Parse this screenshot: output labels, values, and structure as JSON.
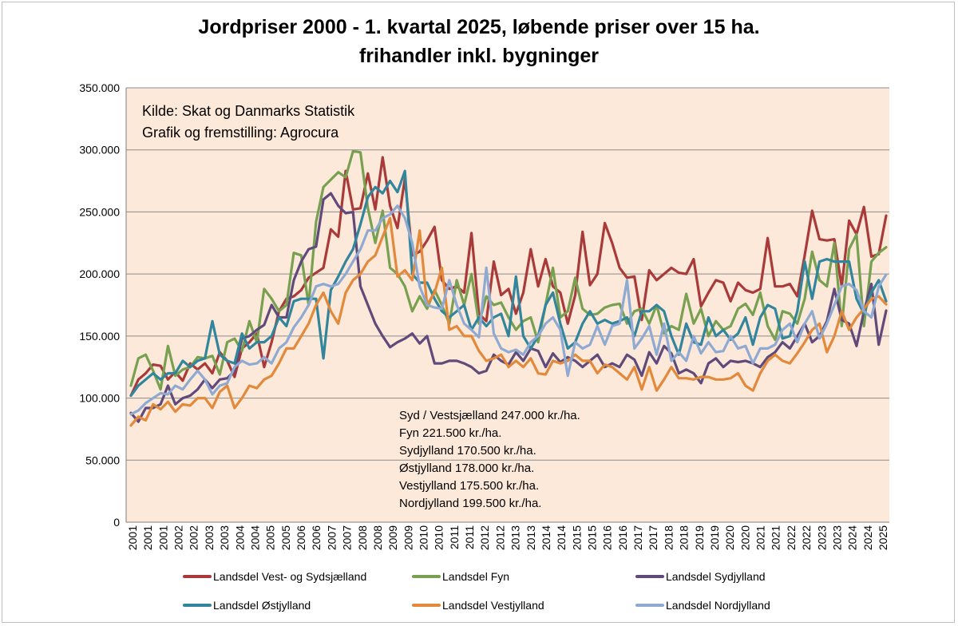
{
  "chart_data": {
    "type": "line",
    "title_lines": [
      "Jordpriser 2000 - 1. kvartal 2025, løbende priser over 15 ha.",
      "frihandler inkl. bygninger"
    ],
    "ylim": [
      0,
      350000
    ],
    "ytick_values": [
      0,
      50000,
      100000,
      150000,
      200000,
      250000,
      300000,
      350000
    ],
    "ytick_labels": [
      "0",
      "50.000",
      "100.000",
      "150.000",
      "200.000",
      "250.000",
      "300.000",
      "350.000"
    ],
    "xtick_labels": [
      "2001",
      "2001",
      "2001",
      "2002",
      "2002",
      "2003",
      "2003",
      "2004",
      "2004",
      "2005",
      "2005",
      "2006",
      "2006",
      "2007",
      "2007",
      "2008",
      "2008",
      "2009",
      "2009",
      "2010",
      "2010",
      "2011",
      "2011",
      "2012",
      "2012",
      "2013",
      "2013",
      "2014",
      "2014",
      "2015",
      "2015",
      "2016",
      "2016",
      "2017",
      "2017",
      "2018",
      "2018",
      "2019",
      "2019",
      "2020",
      "2020",
      "2021",
      "2021",
      "2022",
      "2022",
      "2023",
      "2023",
      "2024",
      "2024",
      "2025"
    ],
    "grid": "horizontal",
    "legend_placement": "bottom",
    "annotation": {
      "line1": "Kilde: Skat og Danmarks Statistik",
      "line2": "Grafik og fremstilling: Agrocura"
    },
    "summary": [
      "Syd / Vestsjælland 247.000 kr./ha.",
      "Fyn 221.500 kr./ha.",
      "Sydjylland 170.500 kr./ha.",
      "Østjylland 178.000 kr./ha.",
      "Vestjylland 175.500 kr./ha.",
      "Nordjylland 199.500 kr./ha."
    ],
    "series": [
      {
        "name": "Landsdel Vest- og Sydsjælland",
        "color": "#a93a3a",
        "values": [
          102000,
          115000,
          120000,
          127000,
          126000,
          115000,
          121000,
          114000,
          128000,
          123000,
          128000,
          120000,
          137000,
          130000,
          117000,
          140000,
          145000,
          152000,
          125000,
          145000,
          170000,
          180000,
          182000,
          187000,
          197000,
          201000,
          205000,
          236000,
          230000,
          283000,
          252000,
          253000,
          281000,
          252000,
          294000,
          255000,
          237000,
          277000,
          215000,
          218000,
          227000,
          238000,
          195000,
          188000,
          190000,
          185000,
          233000,
          168000,
          162000,
          210000,
          183000,
          188000,
          168000,
          185000,
          220000,
          190000,
          212000,
          190000,
          185000,
          160000,
          183000,
          234000,
          191000,
          200000,
          241000,
          225000,
          205000,
          197000,
          198000,
          163000,
          203000,
          195000,
          200000,
          205000,
          201000,
          200000,
          212000,
          174000,
          185000,
          195000,
          193000,
          178000,
          193000,
          187000,
          185000,
          188000,
          229000,
          190000,
          190000,
          192000,
          182000,
          215000,
          251000,
          228000,
          227000,
          228000,
          190000,
          243000,
          232000,
          254000,
          214000,
          216000,
          247000
        ]
      },
      {
        "name": "Landsdel Fyn",
        "color": "#77a050",
        "values": [
          110000,
          132000,
          135000,
          122000,
          107000,
          142000,
          118000,
          123000,
          125000,
          133000,
          132000,
          134000,
          119000,
          145000,
          148000,
          138000,
          162000,
          145000,
          188000,
          180000,
          170000,
          175000,
          217000,
          215000,
          175000,
          242000,
          270000,
          276000,
          282000,
          278000,
          299000,
          298000,
          253000,
          225000,
          251000,
          205000,
          200000,
          190000,
          170000,
          182000,
          172000,
          187000,
          175000,
          160000,
          195000,
          175000,
          200000,
          160000,
          182000,
          175000,
          177000,
          165000,
          155000,
          162000,
          165000,
          145000,
          175000,
          205000,
          165000,
          170000,
          197000,
          172000,
          167000,
          168000,
          173000,
          175000,
          176000,
          160000,
          170000,
          172000,
          160000,
          175000,
          152000,
          158000,
          155000,
          184000,
          160000,
          172000,
          150000,
          162000,
          155000,
          158000,
          172000,
          176000,
          167000,
          185000,
          158000,
          147000,
          170000,
          168000,
          160000,
          180000,
          218000,
          195000,
          190000,
          225000,
          158000,
          220000,
          232000,
          158000,
          210000,
          217000,
          221500
        ]
      },
      {
        "name": "Landsdel Sydjylland",
        "color": "#604a7b",
        "values": [
          88000,
          81000,
          92000,
          92000,
          95000,
          110000,
          95000,
          100000,
          102000,
          107000,
          115000,
          108000,
          115000,
          116000,
          122000,
          148000,
          150000,
          155000,
          159000,
          175000,
          165000,
          165000,
          195000,
          210000,
          220000,
          222000,
          260000,
          265000,
          255000,
          249000,
          250000,
          190000,
          175000,
          160000,
          150000,
          141000,
          145000,
          148000,
          152000,
          144000,
          150000,
          128000,
          128000,
          130000,
          130000,
          128000,
          125000,
          120000,
          122000,
          135000,
          130000,
          127000,
          137000,
          130000,
          140000,
          138000,
          125000,
          136000,
          129000,
          133000,
          130000,
          125000,
          130000,
          135000,
          125000,
          128000,
          125000,
          135000,
          131000,
          118000,
          137000,
          128000,
          142000,
          136000,
          120000,
          123000,
          120000,
          112000,
          128000,
          132000,
          125000,
          130000,
          129000,
          130000,
          128000,
          125000,
          133000,
          137000,
          145000,
          140000,
          150000,
          160000,
          145000,
          150000,
          162000,
          188000,
          163000,
          160000,
          142000,
          170000,
          192000,
          143000,
          170500
        ]
      },
      {
        "name": "Landsdel Østjylland",
        "color": "#31859c",
        "values": [
          102000,
          110000,
          115000,
          120000,
          115000,
          120000,
          120000,
          130000,
          125000,
          130000,
          132000,
          162000,
          135000,
          130000,
          128000,
          152000,
          140000,
          145000,
          145000,
          150000,
          165000,
          158000,
          178000,
          180000,
          180000,
          180000,
          132000,
          187000,
          198000,
          210000,
          220000,
          240000,
          262000,
          270000,
          265000,
          275000,
          266000,
          283000,
          200000,
          193000,
          193000,
          180000,
          170000,
          165000,
          170000,
          175000,
          155000,
          165000,
          158000,
          165000,
          168000,
          150000,
          198000,
          150000,
          140000,
          150000,
          175000,
          185000,
          160000,
          140000,
          145000,
          160000,
          170000,
          160000,
          163000,
          160000,
          162000,
          165000,
          150000,
          170000,
          170000,
          175000,
          170000,
          150000,
          135000,
          160000,
          145000,
          143000,
          165000,
          150000,
          155000,
          147000,
          152000,
          165000,
          143000,
          165000,
          175000,
          172000,
          148000,
          150000,
          170000,
          210000,
          180000,
          210000,
          212000,
          210000,
          210000,
          210000,
          180000,
          168000,
          185000,
          195000,
          178000
        ]
      },
      {
        "name": "Landsdel Vestjylland",
        "color": "#e2893c",
        "values": [
          78000,
          85000,
          82000,
          95000,
          91000,
          97000,
          89000,
          95000,
          94000,
          100000,
          100000,
          92000,
          105000,
          110000,
          92000,
          100000,
          110000,
          108000,
          115000,
          118000,
          128000,
          140000,
          140000,
          150000,
          160000,
          175000,
          185000,
          170000,
          160000,
          185000,
          195000,
          200000,
          210000,
          215000,
          230000,
          245000,
          198000,
          203000,
          195000,
          235000,
          175000,
          185000,
          205000,
          155000,
          158000,
          150000,
          150000,
          138000,
          130000,
          132000,
          135000,
          125000,
          130000,
          125000,
          132000,
          120000,
          119000,
          130000,
          128000,
          130000,
          135000,
          130000,
          130000,
          120000,
          127000,
          125000,
          120000,
          115000,
          125000,
          107000,
          125000,
          106000,
          115000,
          125000,
          116000,
          116000,
          115000,
          117000,
          117000,
          115000,
          115000,
          116000,
          120000,
          110000,
          106000,
          120000,
          130000,
          135000,
          130000,
          128000,
          136000,
          145000,
          155000,
          160000,
          137000,
          150000,
          170000,
          155000,
          165000,
          172000,
          180000,
          182000,
          175500
        ]
      },
      {
        "name": "Landsdel Nordjylland",
        "color": "#8eaad3",
        "values": [
          87000,
          90000,
          96000,
          100000,
          104000,
          103000,
          110000,
          107000,
          115000,
          122000,
          115000,
          103000,
          110000,
          112000,
          125000,
          130000,
          127000,
          128000,
          133000,
          128000,
          140000,
          145000,
          157000,
          165000,
          175000,
          190000,
          192000,
          190000,
          192000,
          200000,
          210000,
          220000,
          235000,
          235000,
          245000,
          248000,
          255000,
          245000,
          225000,
          190000,
          175000,
          173000,
          172000,
          195000,
          175000,
          160000,
          155000,
          149000,
          205000,
          152000,
          140000,
          137000,
          139000,
          135000,
          145000,
          150000,
          160000,
          165000,
          155000,
          118000,
          145000,
          140000,
          143000,
          158000,
          143000,
          158000,
          160000,
          195000,
          140000,
          148000,
          158000,
          135000,
          160000,
          130000,
          137000,
          130000,
          150000,
          136000,
          145000,
          137000,
          138000,
          150000,
          140000,
          142000,
          128000,
          140000,
          140000,
          143000,
          155000,
          160000,
          145000,
          160000,
          170000,
          148000,
          160000,
          175000,
          190000,
          192000,
          187000,
          170000,
          165000,
          190000,
          199500
        ]
      }
    ]
  }
}
